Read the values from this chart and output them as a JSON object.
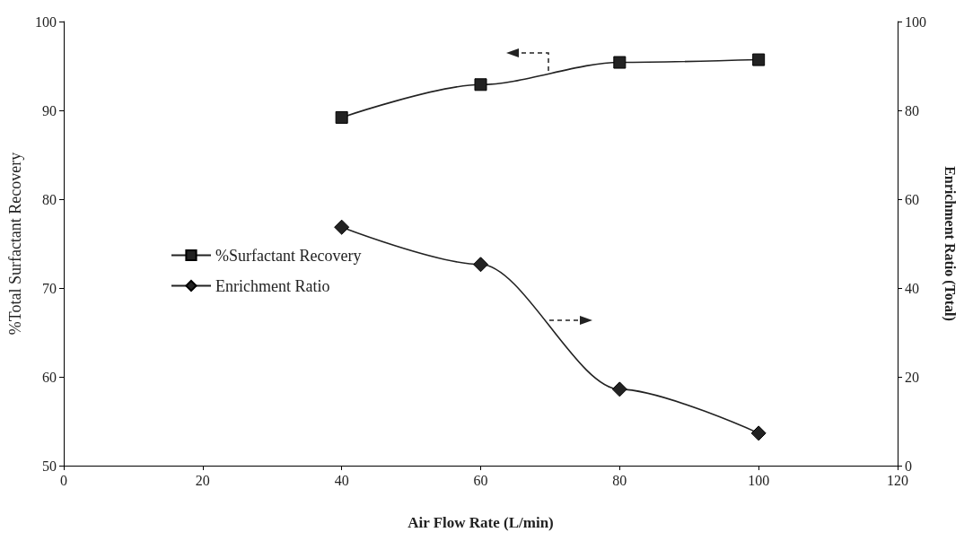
{
  "chart_data": {
    "type": "line",
    "xlabel": "Air Flow Rate (L/min)",
    "ylabel": "%Total Surfactant Recovery",
    "y2label": "Enrichment Ratio (Total)",
    "x": [
      40,
      60,
      80,
      100
    ],
    "series": [
      {
        "name": "%Surfactant Recovery",
        "color": "#222222",
        "marker": "square",
        "values": [
          89.2,
          92.9,
          95.4,
          95.7
        ]
      },
      {
        "name": "Enrichment Ratio",
        "color": "#222222",
        "marker": "diamond",
        "axis": "y2",
        "values": [
          53.7,
          45.3,
          17.2,
          7.3
        ]
      }
    ],
    "xlim": [
      0,
      120
    ],
    "xticks": [
      0,
      20,
      40,
      60,
      80,
      100,
      120
    ],
    "ylim": [
      50,
      100
    ],
    "yticks": [
      50,
      60,
      70,
      80,
      90,
      100
    ],
    "y2lim": [
      0,
      100
    ],
    "y2ticks": [
      0,
      20,
      40,
      60,
      80,
      100
    ],
    "legend": "left",
    "grid": false,
    "line_style": "solid"
  }
}
